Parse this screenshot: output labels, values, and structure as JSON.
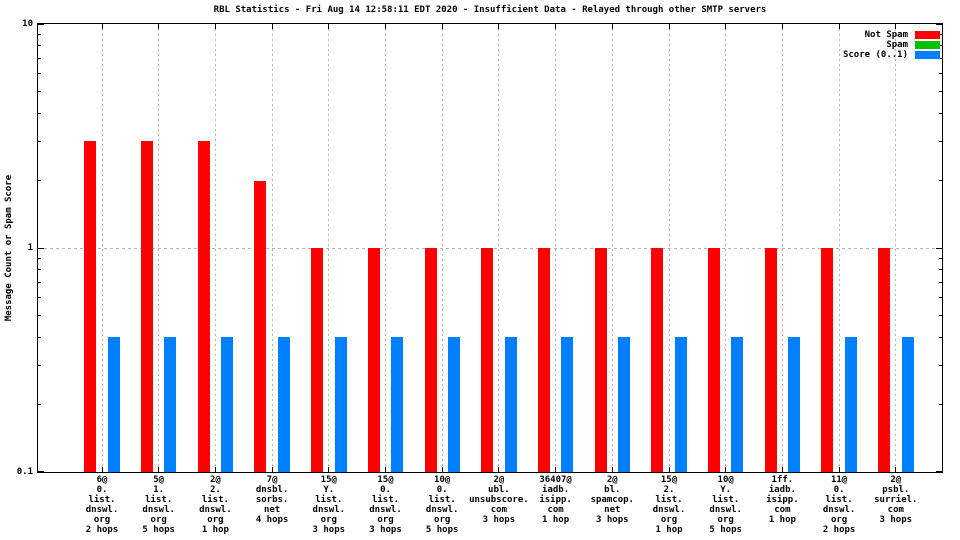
{
  "title": "RBL Statistics - Fri Aug 14 12:58:11 EDT 2020 - Insufficient Data - Relayed through other SMTP servers",
  "y_axis": {
    "label": "Message Count or Spam Score",
    "ticks": [
      {
        "label": "10",
        "value": 10
      },
      {
        "label": "1",
        "value": 1
      },
      {
        "label": "0.1",
        "value": 0.1
      }
    ]
  },
  "legend": {
    "position": "top-right",
    "entries": [
      {
        "label": "Not Spam",
        "color": "#ff0000"
      },
      {
        "label": "Spam",
        "color": "#00c000"
      },
      {
        "label": "Score (0..1)",
        "color": "#0080ff"
      }
    ]
  },
  "chart_data": {
    "type": "bar",
    "scale_y": "log",
    "ylim": [
      0.1,
      10
    ],
    "grid": true,
    "legend_position": "top-right",
    "title": "RBL Statistics - Fri Aug 14 12:58:11 EDT 2020 - Insufficient Data - Relayed through other SMTP servers",
    "ylabel": "Message Count or Spam Score",
    "xlabel": "",
    "categories": [
      "6@\n0.\nlist.\ndnswl.\norg\n2 hops",
      "5@\n1.\nlist.\ndnswl.\norg\n5 hops",
      "2@\n2.\nlist.\ndnswl.\norg\n1 hop",
      "7@\ndnsbl.\nsorbs.\nnet\n4 hops",
      "15@\nY.\nlist.\ndnswl.\norg\n3 hops",
      "15@\n0.\nlist.\ndnswl.\norg\n3 hops",
      "10@\n0.\nlist.\ndnswl.\norg\n5 hops",
      "2@\nubl.\nunsubscore.\ncom\n3 hops",
      "36407@\niadb.\nisipp.\ncom\n1 hop",
      "2@\nbl.\nspamcop.\nnet\n3 hops",
      "15@\n2.\nlist.\ndnswl.\norg\n1 hop",
      "10@\nY.\nlist.\ndnswl.\norg\n5 hops",
      "1ff.\niadb.\nisipp.\ncom\n1 hop",
      "11@\n0.\nlist.\ndnswl.\norg\n2 hops",
      "2@\npsbl.\nsurriel.\ncom\n3 hops"
    ],
    "series": [
      {
        "name": "Not Spam",
        "color": "#ff0000",
        "values": [
          3,
          3,
          3,
          2,
          1,
          1,
          1,
          1,
          1,
          1,
          1,
          1,
          1,
          1,
          1
        ]
      },
      {
        "name": "Spam",
        "color": "#00c000",
        "values": [
          0,
          0,
          0,
          0,
          0,
          0,
          0,
          0,
          0,
          0,
          0,
          0,
          0,
          0,
          0
        ]
      },
      {
        "name": "Score (0..1)",
        "color": "#0080ff",
        "values": [
          0.4,
          0.4,
          0.4,
          0.4,
          0.4,
          0.4,
          0.4,
          0.4,
          0.4,
          0.4,
          0.4,
          0.4,
          0.4,
          0.4,
          0.4
        ]
      }
    ]
  }
}
